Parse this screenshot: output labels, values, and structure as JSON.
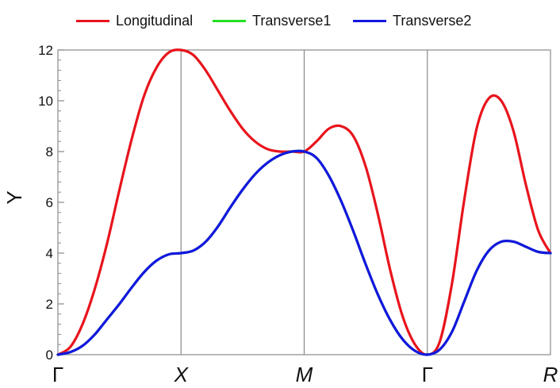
{
  "chart_data": {
    "type": "line",
    "title": "",
    "xlabel": "",
    "ylabel": "Y",
    "ylim": [
      0,
      12
    ],
    "yticks": [
      "0",
      "2",
      "4",
      "6",
      "8",
      "10",
      "12"
    ],
    "x_ticks": [
      {
        "label": "Γ",
        "x": 0,
        "italic": false
      },
      {
        "label": "X",
        "x": 1,
        "italic": true
      },
      {
        "label": "M",
        "x": 2,
        "italic": true
      },
      {
        "label": "Γ",
        "x": 3,
        "italic": false
      },
      {
        "label": "R",
        "x": 4,
        "italic": true
      }
    ],
    "xlim": [
      0,
      4
    ],
    "grid": "vertical lines at high-symmetry points",
    "legend_position": "top",
    "series": [
      {
        "name": "Longitudinal",
        "color": "#e8141c",
        "x": [
          0,
          0.1,
          0.2,
          0.3,
          0.4,
          0.5,
          0.6,
          0.7,
          0.8,
          0.9,
          1.0,
          1.1,
          1.2,
          1.3,
          1.4,
          1.5,
          1.6,
          1.7,
          1.8,
          1.9,
          2.0,
          2.1,
          2.2,
          2.3,
          2.4,
          2.5,
          2.6,
          2.7,
          2.8,
          2.9,
          3.0,
          3.1,
          3.2,
          3.3,
          3.4,
          3.5,
          3.6,
          3.7,
          3.8,
          3.9,
          4.0
        ],
        "values": [
          0,
          0.3,
          1.2,
          2.6,
          4.4,
          6.5,
          8.5,
          10.2,
          11.3,
          11.9,
          12.0,
          11.8,
          11.2,
          10.4,
          9.6,
          8.9,
          8.4,
          8.1,
          8.0,
          8.0,
          8.0,
          8.4,
          8.9,
          9.0,
          8.6,
          7.4,
          5.5,
          3.3,
          1.5,
          0.4,
          0,
          0.5,
          2.8,
          6.1,
          8.9,
          10.1,
          10.0,
          8.8,
          6.7,
          4.9,
          4.0
        ]
      },
      {
        "name": "Transverse1",
        "color": "#22e022",
        "x": [
          0,
          0.1,
          0.2,
          0.3,
          0.4,
          0.5,
          0.6,
          0.7,
          0.8,
          0.9,
          1.0,
          1.1,
          1.2,
          1.3,
          1.4,
          1.5,
          1.6,
          1.7,
          1.8,
          1.9,
          2.0,
          2.1,
          2.2,
          2.3,
          2.4,
          2.5,
          2.6,
          2.7,
          2.8,
          2.9,
          3.0,
          3.1,
          3.2,
          3.3,
          3.4,
          3.5,
          3.6,
          3.7,
          3.8,
          3.9,
          4.0
        ],
        "values": [
          0,
          0.1,
          0.35,
          0.8,
          1.4,
          2.0,
          2.65,
          3.25,
          3.7,
          3.95,
          4.0,
          4.1,
          4.45,
          5.05,
          5.8,
          6.5,
          7.1,
          7.55,
          7.85,
          8.0,
          8.0,
          7.75,
          7.05,
          6.05,
          4.85,
          3.55,
          2.35,
          1.35,
          0.6,
          0.15,
          0,
          0.2,
          0.9,
          2.1,
          3.3,
          4.1,
          4.45,
          4.45,
          4.25,
          4.05,
          4.0
        ]
      },
      {
        "name": "Transverse2",
        "color": "#1416e0",
        "x": [
          0,
          0.1,
          0.2,
          0.3,
          0.4,
          0.5,
          0.6,
          0.7,
          0.8,
          0.9,
          1.0,
          1.1,
          1.2,
          1.3,
          1.4,
          1.5,
          1.6,
          1.7,
          1.8,
          1.9,
          2.0,
          2.1,
          2.2,
          2.3,
          2.4,
          2.5,
          2.6,
          2.7,
          2.8,
          2.9,
          3.0,
          3.1,
          3.2,
          3.3,
          3.4,
          3.5,
          3.6,
          3.7,
          3.8,
          3.9,
          4.0
        ],
        "values": [
          0,
          0.1,
          0.35,
          0.8,
          1.4,
          2.0,
          2.65,
          3.25,
          3.7,
          3.95,
          4.0,
          4.1,
          4.45,
          5.05,
          5.8,
          6.5,
          7.1,
          7.55,
          7.85,
          8.0,
          8.0,
          7.75,
          7.05,
          6.05,
          4.85,
          3.55,
          2.35,
          1.35,
          0.6,
          0.15,
          0,
          0.2,
          0.9,
          2.1,
          3.3,
          4.1,
          4.45,
          4.45,
          4.25,
          4.05,
          4.0
        ]
      }
    ]
  }
}
